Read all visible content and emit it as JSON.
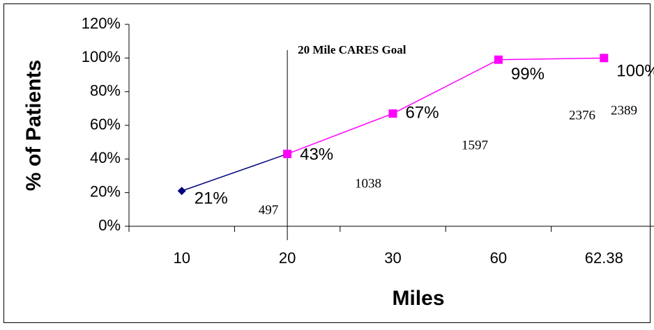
{
  "chart_data": {
    "type": "line",
    "x_label": "Miles",
    "y_label": "% of Patients",
    "categories": [
      "10",
      "20",
      "30",
      "60",
      "62.38"
    ],
    "series": [
      {
        "color": "#000080",
        "marker": "diamond",
        "values": [
          21,
          43,
          null,
          null,
          null
        ],
        "value_labels": [
          "21%",
          null,
          null,
          null,
          null
        ]
      },
      {
        "color": "#ff00ff",
        "marker": "square",
        "values": [
          null,
          43,
          67,
          99,
          100
        ],
        "value_labels": [
          null,
          "43%",
          "67%",
          "99%",
          "100%"
        ]
      }
    ],
    "counts": [
      497,
      1038,
      1597,
      2376,
      2389
    ],
    "annotation": {
      "text": "20 Mile CARES Goal",
      "category": "20"
    },
    "ylim": [
      0,
      120
    ],
    "yticks": [
      {
        "value": 0,
        "label": "0%"
      },
      {
        "value": 20,
        "label": "20%"
      },
      {
        "value": 40,
        "label": "40%"
      },
      {
        "value": 60,
        "label": "60%"
      },
      {
        "value": 80,
        "label": "80%"
      },
      {
        "value": 100,
        "label": "100%"
      },
      {
        "value": 120,
        "label": "120%"
      }
    ],
    "grid": false
  }
}
